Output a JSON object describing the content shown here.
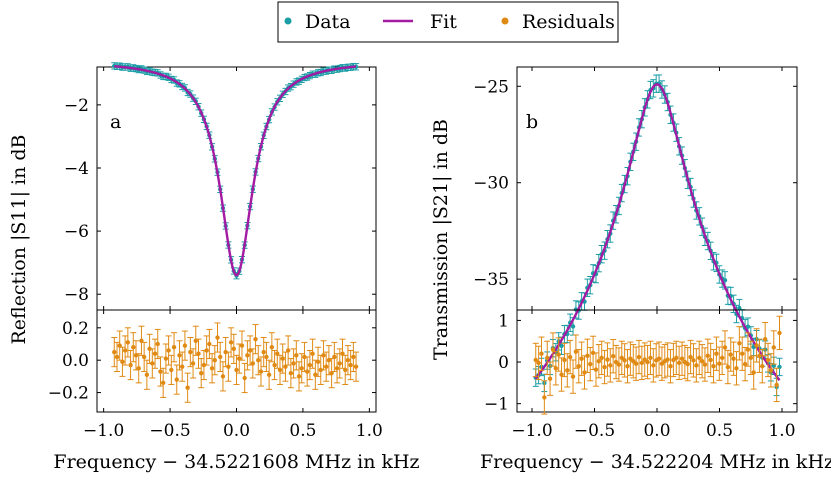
{
  "legend": {
    "items": [
      {
        "label": "Data",
        "kind": "marker",
        "color": "#1a9da6"
      },
      {
        "label": "Fit",
        "kind": "line",
        "color": "#a31aa3"
      },
      {
        "label": "Residuals",
        "kind": "marker",
        "color": "#e08a14"
      }
    ]
  },
  "chart_data": [
    {
      "panel": "a",
      "type": "scatter",
      "title": "",
      "xlabel": "Frequency − 34.5221608 MHz in kHz",
      "ylabel": "Reflection |S11| in dB",
      "xlim": [
        -1.05,
        1.05
      ],
      "xticks": [
        -1.0,
        -0.5,
        0.0,
        0.5,
        1.0
      ],
      "xtick_labels": [
        "−1.0",
        "−0.5",
        "0.0",
        "0.5",
        "1.0"
      ],
      "main": {
        "ylim": [
          -8.5,
          -0.8
        ],
        "yticks": [
          -2,
          -4,
          -6,
          -8
        ],
        "ytick_labels": [
          "−2",
          "−4",
          "−6",
          "−8"
        ],
        "x_range": [
          -0.92,
          0.9
        ],
        "n_points": 90,
        "fit": {
          "model": "lorentzian_dip",
          "center": 0.0,
          "baseline": -0.6,
          "depth": 6.8,
          "hwhm": 0.15
        },
        "errorbar_db": 0.1,
        "color_data": "#1a9da6",
        "color_fit": "#a31aa3"
      },
      "residuals": {
        "ylim": [
          -0.32,
          0.31
        ],
        "yticks": [
          0.2,
          0.0,
          -0.2
        ],
        "ytick_labels": [
          "0.2",
          "0.0",
          "−0.2"
        ],
        "values": [
          0.05,
          0.02,
          0.09,
          -0.01,
          0.06,
          0.11,
          -0.03,
          0.08,
          0.03,
          -0.05,
          0.12,
          0.02,
          -0.09,
          0.07,
          -0.02,
          0.04,
          0.1,
          -0.07,
          -0.14,
          0.01,
          0.06,
          -0.06,
          0.08,
          -0.12,
          0.03,
          -0.04,
          0.09,
          -0.17,
          0.05,
          -0.02,
          0.12,
          0.04,
          -0.08,
          -0.03,
          0.06,
          0.1,
          -0.05,
          0.0,
          0.14,
          0.02,
          -0.1,
          0.05,
          -0.04,
          0.11,
          0.07,
          -0.06,
          0.01,
          0.09,
          -0.11,
          0.03,
          0.06,
          -0.02,
          0.13,
          0.0,
          -0.07,
          0.05,
          0.02,
          -0.09,
          0.08,
          -0.03,
          0.04,
          -0.06,
          0.01,
          -0.04,
          0.06,
          -0.08,
          -0.02,
          0.03,
          -0.1,
          -0.05,
          0.02,
          -0.07,
          -0.03,
          0.04,
          -0.09,
          -0.01,
          -0.06,
          0.03,
          -0.04,
          0.0,
          -0.08,
          0.02,
          -0.05,
          -0.02,
          0.04,
          -0.06,
          0.0,
          -0.03,
          0.02,
          -0.04
        ],
        "errorbar": 0.09,
        "color": "#e08a14"
      },
      "label": "a"
    },
    {
      "panel": "b",
      "type": "scatter",
      "title": "",
      "xlabel": "Frequency − 34.522204 MHz in kHz",
      "ylabel": "Transmission |S21| in dB",
      "xlim": [
        -1.12,
        1.12
      ],
      "xticks": [
        -1.0,
        -0.5,
        0.0,
        0.5,
        1.0
      ],
      "xtick_labels": [
        "−1.0",
        "−0.5",
        "0.0",
        "0.5",
        "1.0"
      ],
      "main": {
        "ylim": [
          -36.6,
          -24.0
        ],
        "yticks": [
          -25,
          -30,
          -35
        ],
        "ytick_labels": [
          "−25",
          "−30",
          "−35"
        ],
        "x_range": [
          -0.97,
          0.98
        ],
        "n_points": 86,
        "fit": {
          "model": "lorentzian_peak_db",
          "center": 0.0,
          "peak_db": -24.9,
          "hwhm": 0.17
        },
        "errorbar_db": 0.45,
        "color_data": "#1a9da6",
        "color_fit": "#a31aa3"
      },
      "residuals": {
        "ylim": [
          -1.2,
          1.25
        ],
        "yticks": [
          1,
          0,
          -1
        ],
        "ytick_labels": [
          "1",
          "0",
          "−1"
        ],
        "values": [
          0.05,
          -0.02,
          0.2,
          -0.85,
          0.1,
          -0.4,
          0.3,
          -0.15,
          0.18,
          -0.3,
          0.05,
          -0.2,
          0.12,
          -0.35,
          0.25,
          -0.1,
          0.08,
          -0.25,
          0.15,
          -0.05,
          0.22,
          -0.18,
          0.02,
          0.1,
          -0.12,
          0.06,
          -0.08,
          0.14,
          0.0,
          -0.06,
          0.1,
          0.04,
          -0.1,
          0.08,
          0.02,
          -0.04,
          0.12,
          -0.02,
          0.06,
          0.0,
          0.1,
          -0.08,
          0.04,
          0.08,
          -0.04,
          0.02,
          0.06,
          -0.1,
          0.05,
          0.1,
          -0.02,
          0.08,
          0.0,
          -0.05,
          0.12,
          0.04,
          -0.08,
          0.1,
          0.02,
          -0.06,
          0.15,
          0.05,
          -0.1,
          0.2,
          -0.04,
          0.1,
          0.35,
          -0.12,
          0.18,
          0.08,
          -0.15,
          0.45,
          0.2,
          -0.05,
          0.3,
          0.1,
          -0.25,
          0.4,
          0.15,
          -0.1,
          0.55,
          0.05,
          -0.2,
          0.35,
          -0.55,
          0.7
        ],
        "errorbar": 0.4,
        "color": "#e08a14"
      },
      "label": "b"
    }
  ]
}
